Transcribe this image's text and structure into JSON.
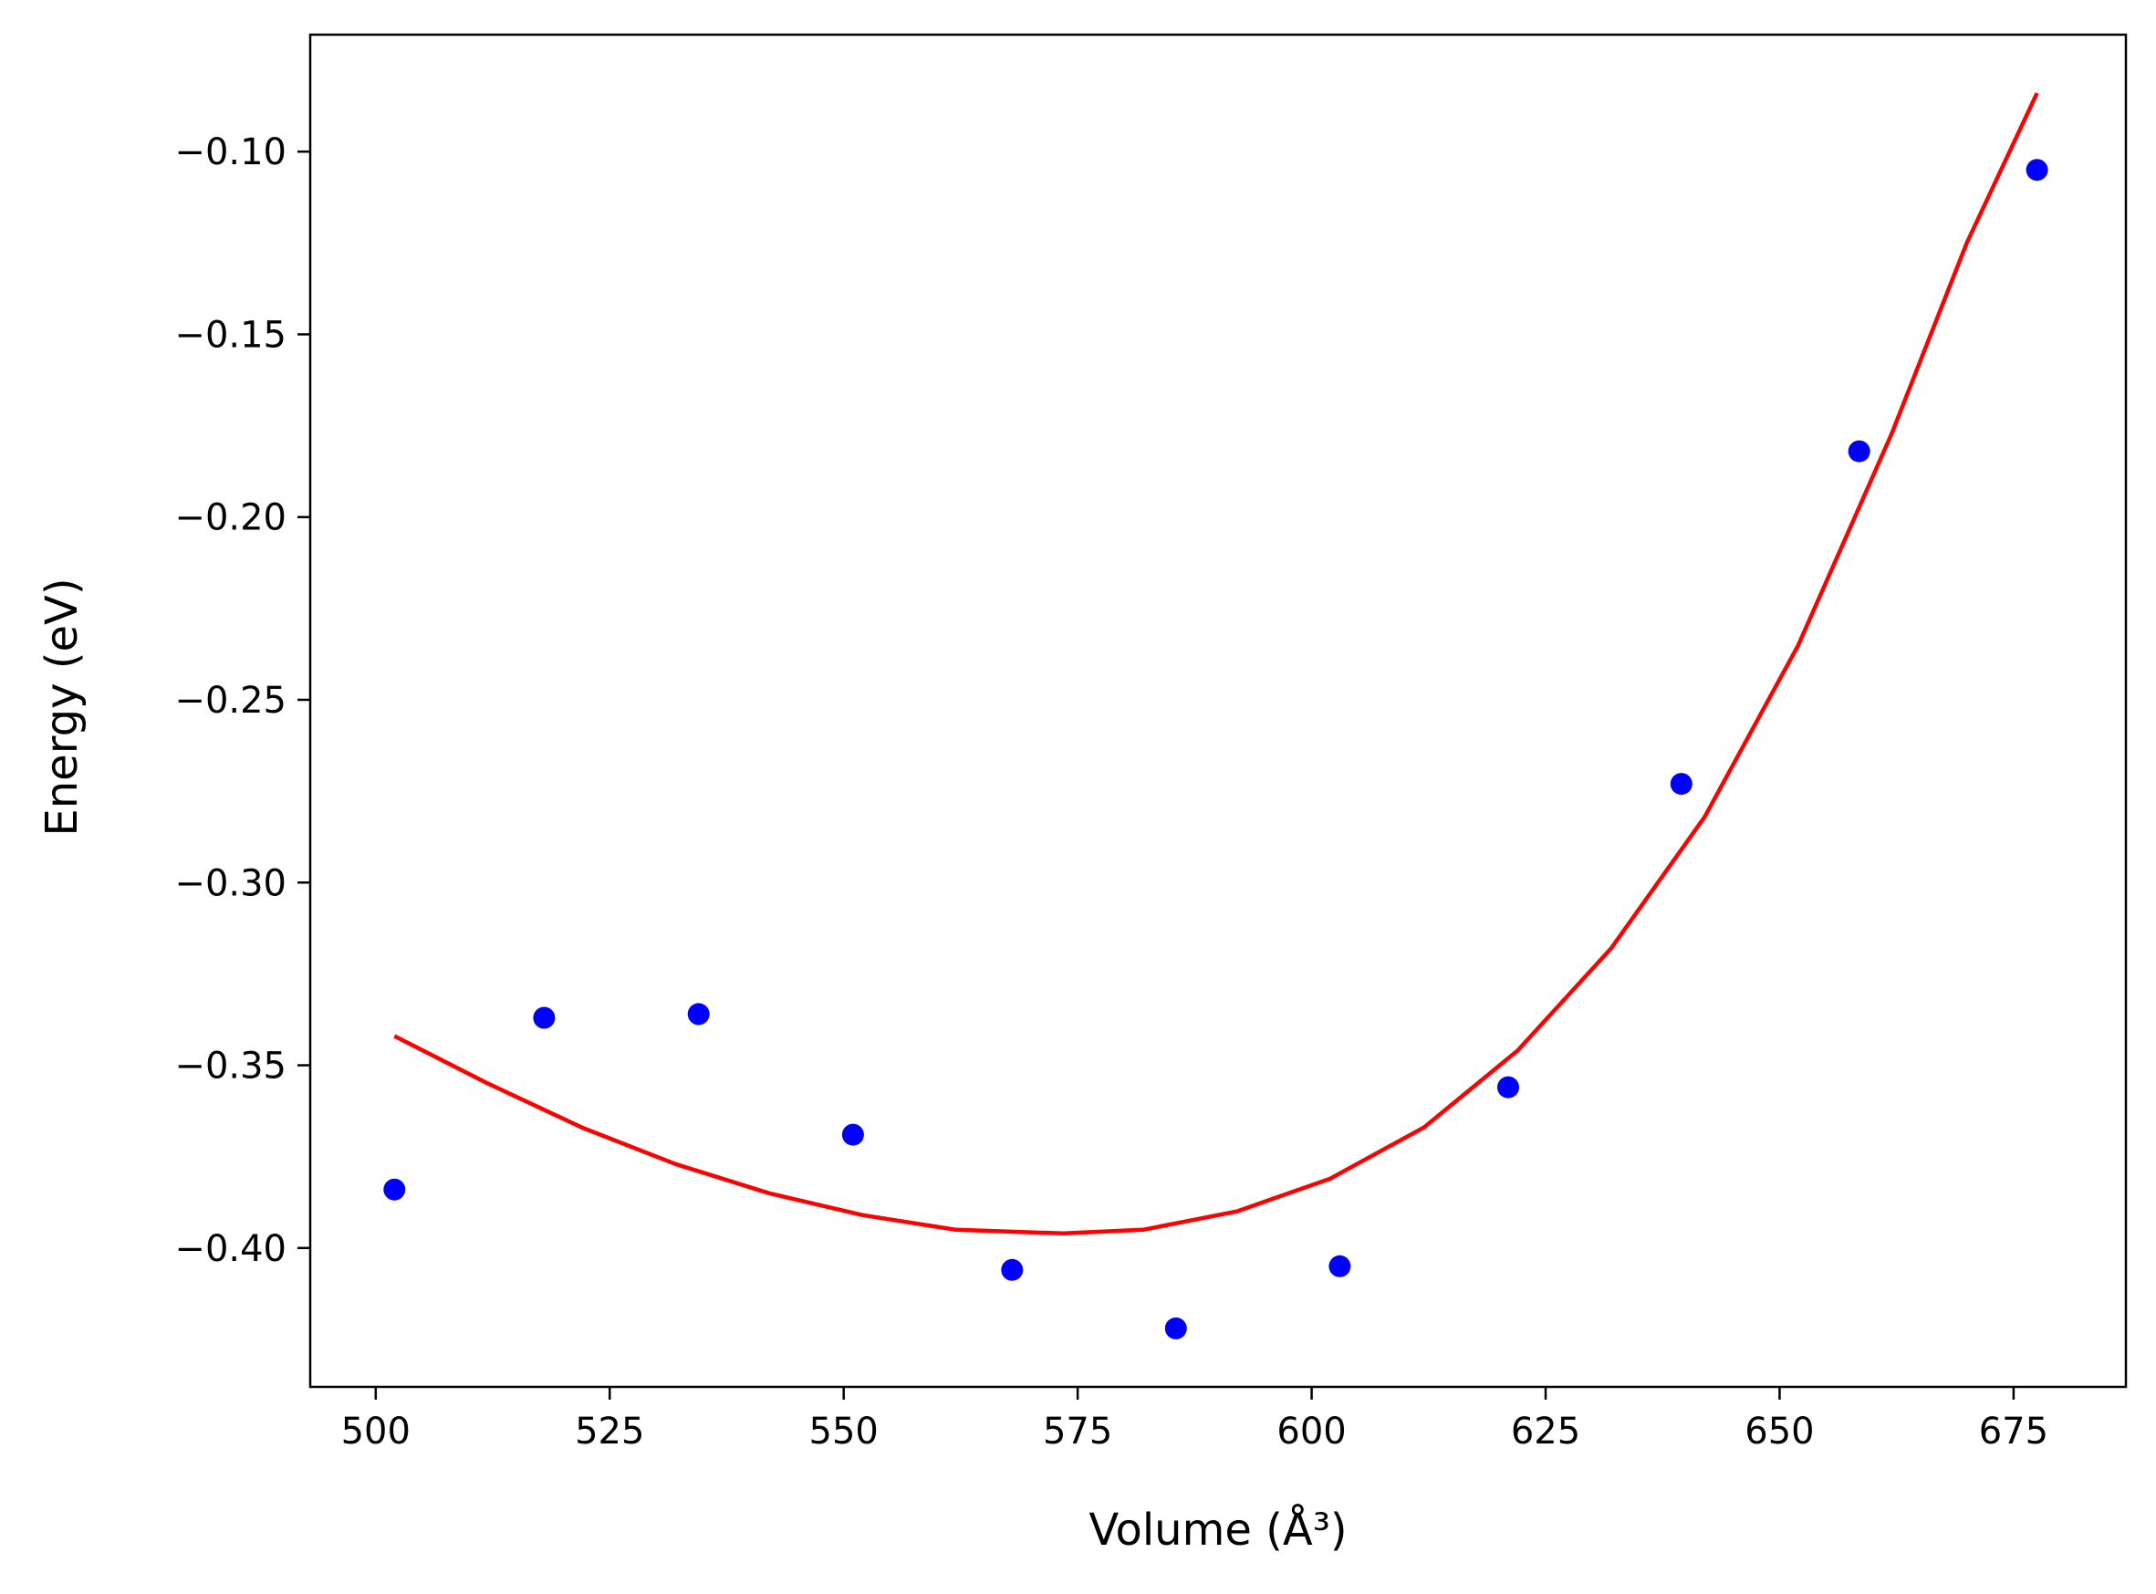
{
  "chart_data": {
    "type": "scatter",
    "title": "",
    "xlabel": "Volume (Å³)",
    "ylabel": "Energy (eV)",
    "xlim": [
      493,
      687
    ],
    "ylim": [
      -0.438,
      -0.068
    ],
    "x_ticks": [
      500,
      525,
      550,
      575,
      600,
      625,
      650,
      675
    ],
    "x_tick_labels": [
      "500",
      "525",
      "550",
      "575",
      "600",
      "625",
      "650",
      "675"
    ],
    "y_ticks": [
      -0.1,
      -0.15,
      -0.2,
      -0.25,
      -0.3,
      -0.35,
      -0.4
    ],
    "y_tick_labels": [
      "−0.10",
      "−0.15",
      "−0.20",
      "−0.25",
      "−0.30",
      "−0.35",
      "−0.40"
    ],
    "grid": false,
    "legend": "none",
    "series": [
      {
        "type": "scatter",
        "color": "#0000ff",
        "x": [
          502.0,
          518.0,
          534.5,
          551.0,
          568.0,
          585.5,
          603.0,
          621.0,
          639.5,
          658.5,
          677.5
        ],
        "y": [
          -0.384,
          -0.337,
          -0.336,
          -0.369,
          -0.406,
          -0.422,
          -0.405,
          -0.356,
          -0.273,
          -0.182,
          -0.105
        ]
      },
      {
        "type": "line",
        "color": "#ff0000",
        "x": [
          502,
          512,
          522,
          532,
          542,
          552,
          562,
          573.5,
          582,
          592,
          602,
          612,
          622,
          632,
          642,
          652,
          662,
          670,
          677.5
        ],
        "y": [
          -0.342,
          -0.355,
          -0.367,
          -0.377,
          -0.385,
          -0.391,
          -0.395,
          -0.396,
          -0.395,
          -0.39,
          -0.381,
          -0.367,
          -0.346,
          -0.318,
          -0.282,
          -0.235,
          -0.177,
          -0.125,
          -0.084
        ]
      }
    ]
  }
}
